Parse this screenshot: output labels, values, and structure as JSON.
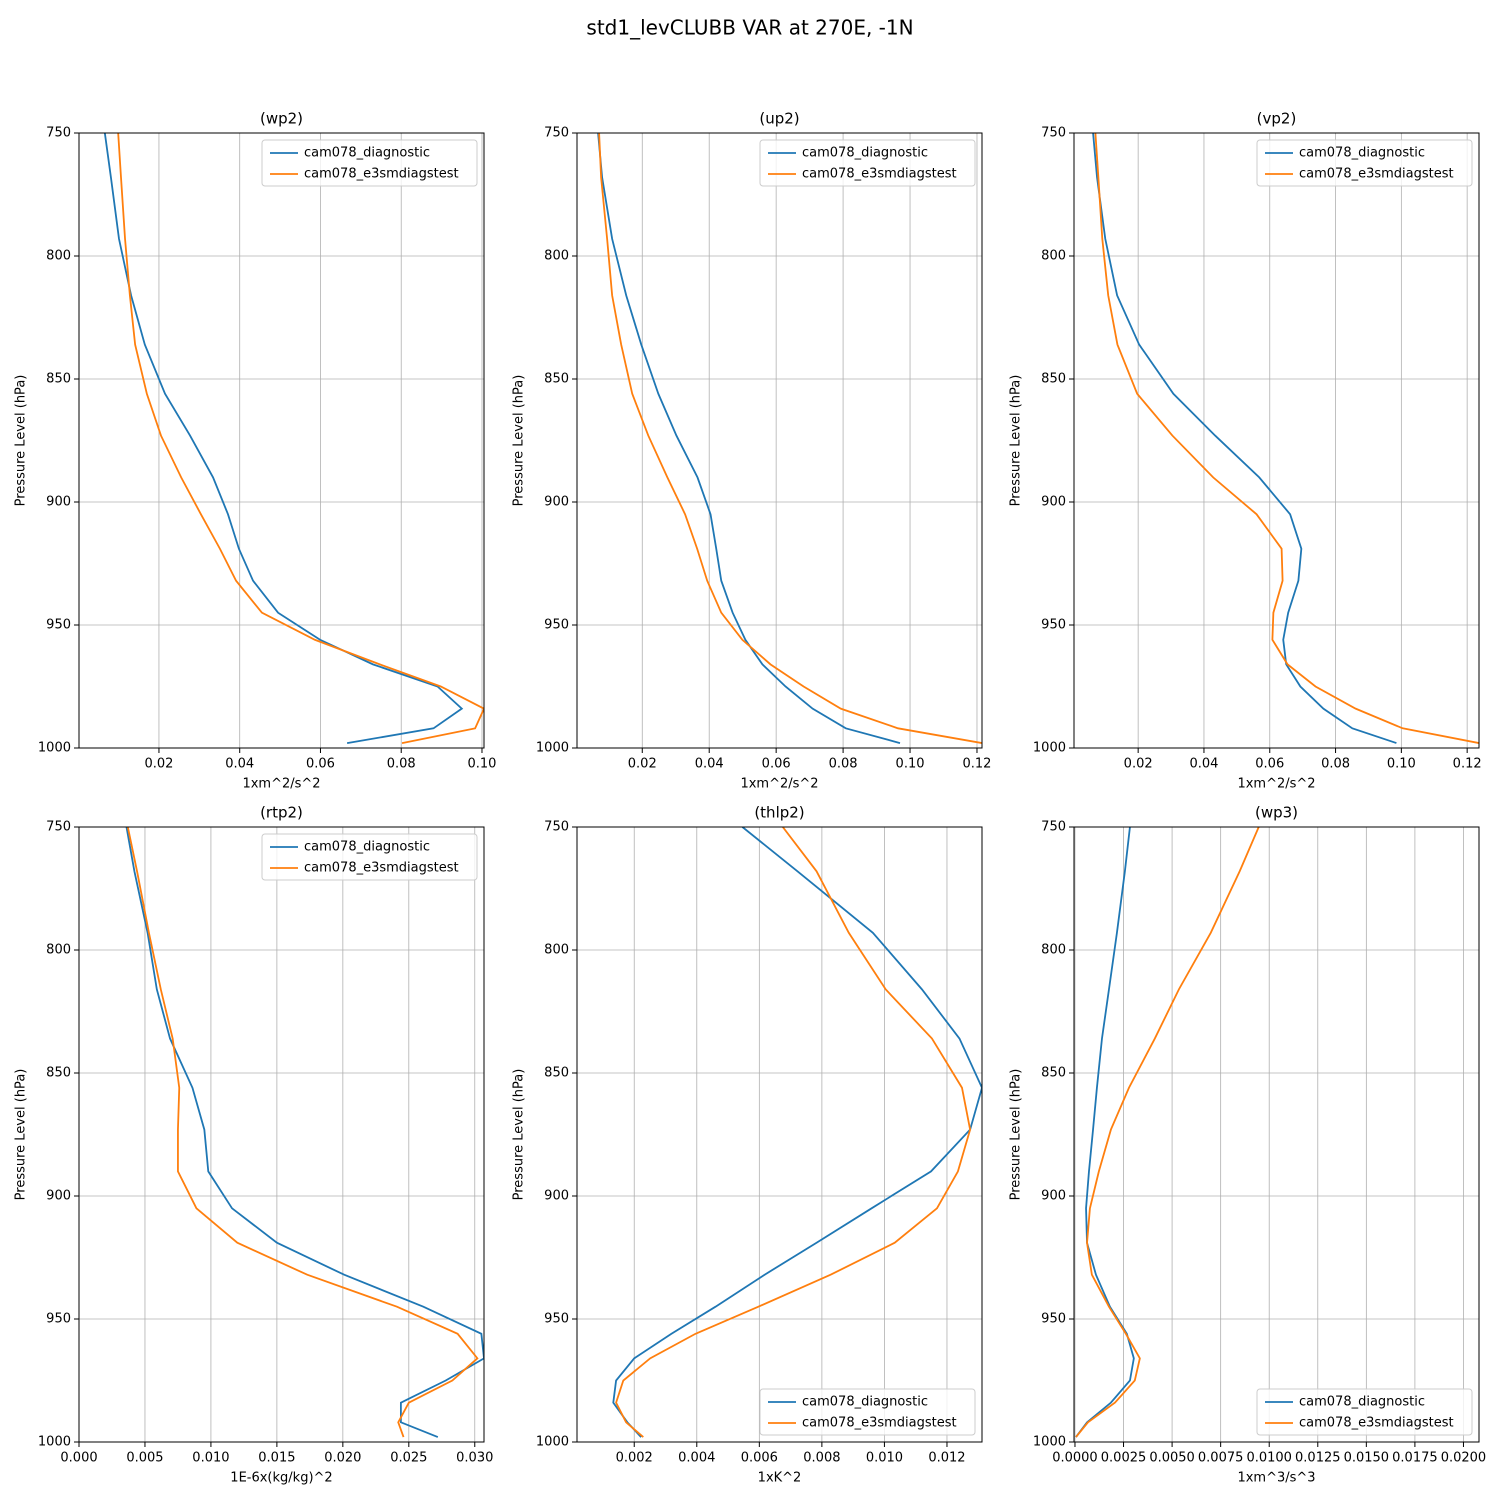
{
  "title": "std1_levCLUBB VAR at 270E, -1N",
  "chart_data": [
    {
      "type": "line",
      "title": "(wp2)",
      "xlabel": "1xm^2/s^2",
      "ylabel": "Pressure Level (hPa)",
      "xlim": [
        0.0002,
        0.1005
      ],
      "xticks": [
        0.02,
        0.04,
        0.06,
        0.08,
        {
          "value": 0.1,
          "label": "0.10"
        }
      ],
      "ylim": [
        1000,
        750
      ],
      "yticks": [
        750,
        800,
        850,
        900,
        950,
        1000
      ],
      "grid": true,
      "legend": "upper right",
      "levels": [
        750,
        768,
        793,
        816,
        836,
        856,
        873,
        890,
        905,
        919,
        932,
        945,
        956,
        966,
        975,
        984,
        992,
        998
      ],
      "series": [
        {
          "name": "cam078_diagnostic",
          "color": "#1f77b4",
          "values": [
            0.0066,
            0.0081,
            0.0101,
            0.0131,
            0.0165,
            0.0215,
            0.0277,
            0.0334,
            0.0371,
            0.0398,
            0.0433,
            0.0495,
            0.0599,
            0.073,
            0.089,
            0.095,
            0.088,
            0.0666
          ]
        },
        {
          "name": "cam078_e3smdiagstest",
          "color": "#ff7f0e",
          "values": [
            0.0099,
            0.0106,
            0.0116,
            0.0128,
            0.0141,
            0.017,
            0.0205,
            0.0255,
            0.0304,
            0.0351,
            0.0391,
            0.0455,
            0.0586,
            0.0747,
            0.0898,
            0.1005,
            0.0983,
            0.0802
          ]
        }
      ]
    },
    {
      "type": "line",
      "title": "(up2)",
      "xlabel": "1xm^2/s^2",
      "ylabel": "Pressure Level (hPa)",
      "xlim": [
        0.0005,
        0.1215
      ],
      "xticks": [
        0.02,
        0.04,
        0.06,
        0.08,
        {
          "value": 0.1,
          "label": "0.10"
        },
        0.12
      ],
      "ylim": [
        1000,
        750
      ],
      "yticks": [
        750,
        800,
        850,
        900,
        950,
        1000
      ],
      "grid": true,
      "legend": "upper right",
      "levels": [
        750,
        768,
        793,
        816,
        836,
        856,
        873,
        890,
        905,
        919,
        932,
        945,
        956,
        966,
        975,
        984,
        992,
        998
      ],
      "series": [
        {
          "name": "cam078_diagnostic",
          "color": "#1f77b4",
          "values": [
            0.0068,
            0.008,
            0.011,
            0.0152,
            0.0197,
            0.0248,
            0.0302,
            0.0365,
            0.0404,
            0.0421,
            0.0436,
            0.047,
            0.0508,
            0.0559,
            0.0628,
            0.0709,
            0.0808,
            0.097
          ]
        },
        {
          "name": "cam078_e3smdiagstest",
          "color": "#ff7f0e",
          "values": [
            0.0071,
            0.0077,
            0.0095,
            0.011,
            0.0137,
            0.017,
            0.0218,
            0.0275,
            0.0328,
            0.0364,
            0.0394,
            0.0436,
            0.0499,
            0.0583,
            0.0682,
            0.0793,
            0.0964,
            0.1215
          ]
        }
      ]
    },
    {
      "type": "line",
      "title": "(vp2)",
      "xlabel": "1xm^2/s^2",
      "ylabel": "Pressure Level (hPa)",
      "xlim": [
        0.0005,
        0.1236
      ],
      "xticks": [
        0.02,
        0.04,
        0.06,
        0.08,
        {
          "value": 0.1,
          "label": "0.10"
        },
        0.12
      ],
      "ylim": [
        1000,
        750
      ],
      "yticks": [
        750,
        800,
        850,
        900,
        950,
        1000
      ],
      "grid": true,
      "legend": "upper right",
      "levels": [
        750,
        768,
        793,
        816,
        836,
        856,
        873,
        890,
        905,
        919,
        932,
        945,
        956,
        966,
        975,
        984,
        992,
        998
      ],
      "series": [
        {
          "name": "cam078_diagnostic",
          "color": "#1f77b4",
          "values": [
            0.0063,
            0.0075,
            0.01,
            0.0136,
            0.0203,
            0.0307,
            0.0434,
            0.0568,
            0.0662,
            0.0696,
            0.0687,
            0.0656,
            0.0641,
            0.065,
            0.0693,
            0.0763,
            0.0851,
            0.0985
          ]
        },
        {
          "name": "cam078_e3smdiagstest",
          "color": "#ff7f0e",
          "values": [
            0.007,
            0.0079,
            0.0091,
            0.0109,
            0.0137,
            0.0197,
            0.0304,
            0.0428,
            0.056,
            0.0636,
            0.0639,
            0.0611,
            0.0608,
            0.0654,
            0.0739,
            0.0861,
            0.1004,
            0.1236
          ]
        }
      ]
    },
    {
      "type": "line",
      "title": "(rtp2)",
      "xlabel": "1E-6x(kg/kg)^2",
      "ylabel": "Pressure Level (hPa)",
      "xlim": [
        0,
        0.0307
      ],
      "xticks": [
        {
          "value": 0,
          "label": "0.000"
        },
        0.005,
        {
          "value": 0.01,
          "label": "0.010"
        },
        0.015,
        {
          "value": 0.02,
          "label": "0.020"
        },
        0.025,
        {
          "value": 0.03,
          "label": "0.030"
        }
      ],
      "ylim": [
        1000,
        750
      ],
      "yticks": [
        750,
        800,
        850,
        900,
        950,
        1000
      ],
      "grid": true,
      "legend": "upper right",
      "levels": [
        750,
        768,
        793,
        816,
        836,
        856,
        873,
        890,
        905,
        919,
        932,
        945,
        956,
        966,
        975,
        984,
        992,
        998
      ],
      "series": [
        {
          "name": "cam078_diagnostic",
          "color": "#1f77b4",
          "values": [
            0.0036,
            0.0042,
            0.0052,
            0.0059,
            0.0069,
            0.0086,
            0.0095,
            0.0098,
            0.0116,
            0.015,
            0.0201,
            0.0261,
            0.0305,
            0.0307,
            0.0278,
            0.0244,
            0.0244,
            0.0272
          ]
        },
        {
          "name": "cam078_e3smdiagstest",
          "color": "#ff7f0e",
          "values": [
            0.0037,
            0.0044,
            0.0053,
            0.0062,
            0.0071,
            0.0076,
            0.0075,
            0.0075,
            0.0089,
            0.012,
            0.0173,
            0.0241,
            0.0287,
            0.0302,
            0.0283,
            0.025,
            0.0242,
            0.0246
          ]
        }
      ]
    },
    {
      "type": "line",
      "title": "(thlp2)",
      "xlabel": "1xK^2",
      "ylabel": "Pressure Level (hPa)",
      "xlim": [
        0.00017,
        0.01312
      ],
      "xticks": [
        0.002,
        0.004,
        0.006,
        0.008,
        {
          "value": 0.01,
          "label": "0.010"
        },
        0.012
      ],
      "ylim": [
        1000,
        750
      ],
      "yticks": [
        750,
        800,
        850,
        900,
        950,
        1000
      ],
      "grid": true,
      "legend": "lower right",
      "levels": [
        750,
        768,
        793,
        816,
        836,
        856,
        873,
        890,
        905,
        919,
        932,
        945,
        956,
        966,
        975,
        984,
        992,
        998
      ],
      "series": [
        {
          "name": "cam078_diagnostic",
          "color": "#1f77b4",
          "values": [
            0.00546,
            0.00722,
            0.00963,
            0.0112,
            0.0124,
            0.01312,
            0.01274,
            0.01149,
            0.00959,
            0.00783,
            0.00617,
            0.0046,
            0.00319,
            0.002,
            0.00142,
            0.00133,
            0.00178,
            0.00222
          ]
        },
        {
          "name": "cam078_e3smdiagstest",
          "color": "#ff7f0e",
          "values": [
            0.00675,
            0.00783,
            0.00886,
            0.01004,
            0.01152,
            0.01248,
            0.01274,
            0.01235,
            0.01168,
            0.01033,
            0.00828,
            0.00597,
            0.00396,
            0.00251,
            0.00165,
            0.00142,
            0.00174,
            0.00229
          ]
        }
      ]
    },
    {
      "type": "line",
      "title": "(wp3)",
      "xlabel": "1xm^3/s^3",
      "ylabel": "Pressure Level (hPa)",
      "xlim": [
        -5e-05,
        0.0208
      ],
      "xticks": [
        {
          "value": 0,
          "label": "0.0000"
        },
        0.0025,
        {
          "value": 0.005,
          "label": "0.0050"
        },
        0.0075,
        {
          "value": 0.01,
          "label": "0.0100"
        },
        0.0125,
        {
          "value": 0.015,
          "label": "0.0150"
        },
        0.0175,
        {
          "value": 0.02,
          "label": "0.0200"
        }
      ],
      "ylim": [
        1000,
        750
      ],
      "yticks": [
        750,
        800,
        850,
        900,
        950,
        1000
      ],
      "grid": true,
      "legend": "lower right",
      "levels": [
        750,
        768,
        793,
        816,
        836,
        856,
        873,
        890,
        905,
        919,
        932,
        945,
        956,
        966,
        975,
        984,
        992,
        998
      ],
      "series": [
        {
          "name": "cam078_diagnostic",
          "color": "#1f77b4",
          "values": [
            0.00283,
            0.00257,
            0.00216,
            0.00175,
            0.00139,
            0.00113,
            0.00093,
            0.00072,
            0.00057,
            0.00062,
            0.00108,
            0.0018,
            0.00267,
            0.00303,
            0.00283,
            0.00185,
            0.00062,
            5e-05
          ]
        },
        {
          "name": "cam078_e3smdiagstest",
          "color": "#ff7f0e",
          "values": [
            0.00946,
            0.00848,
            0.00699,
            0.00535,
            0.00411,
            0.00278,
            0.00185,
            0.00123,
            0.00077,
            0.00062,
            0.00087,
            0.00175,
            0.00262,
            0.00334,
            0.00308,
            0.00206,
            0.00067,
            5e-05
          ]
        }
      ]
    }
  ]
}
